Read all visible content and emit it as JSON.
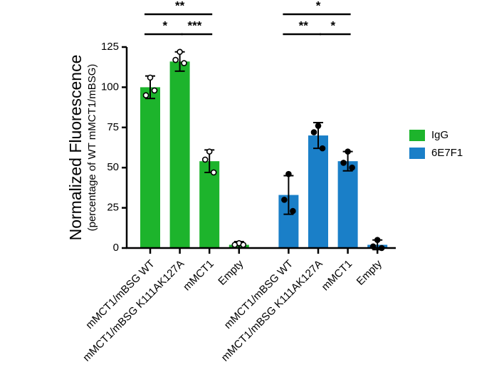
{
  "chart_data": {
    "type": "bar",
    "ylabel": "Normalized Fluorescence",
    "ylabel_sub": "(percentage of WT mMCT1/mBSG)",
    "categories": [
      "mMCT1/mBSG WT",
      "mMCT1/mBSG K111AK127A",
      "mMCT1",
      "Empty",
      "mMCT1/mBSG WT",
      "mMCT1/mBSG K111AK127A",
      "mMCT1",
      "Empty"
    ],
    "series": [
      {
        "name": "IgG",
        "color": "#1db42c",
        "values": [
          100,
          116,
          54,
          2,
          null,
          null,
          null,
          null
        ],
        "errors": [
          7,
          6,
          7,
          2,
          null,
          null,
          null,
          null
        ],
        "points": [
          [
            106,
            95,
            98
          ],
          [
            122,
            117,
            115
          ],
          [
            60,
            55,
            47
          ],
          [
            3,
            2,
            2
          ],
          null,
          null,
          null,
          null
        ]
      },
      {
        "name": "6E7F1",
        "color": "#1a7fc8",
        "values": [
          null,
          null,
          null,
          null,
          33,
          70,
          54,
          2
        ],
        "errors": [
          null,
          null,
          null,
          null,
          12,
          8,
          6,
          3
        ],
        "points": [
          null,
          null,
          null,
          null,
          [
            46,
            30,
            23
          ],
          [
            76,
            72,
            62
          ],
          [
            60,
            53,
            50
          ],
          [
            5,
            1,
            0
          ]
        ]
      }
    ],
    "ylim": [
      0,
      125
    ],
    "yticks": [
      0,
      25,
      50,
      75,
      100,
      125
    ],
    "legend": "right",
    "annotations": [
      "**",
      "*",
      "***",
      "*",
      "**",
      "*"
    ]
  }
}
